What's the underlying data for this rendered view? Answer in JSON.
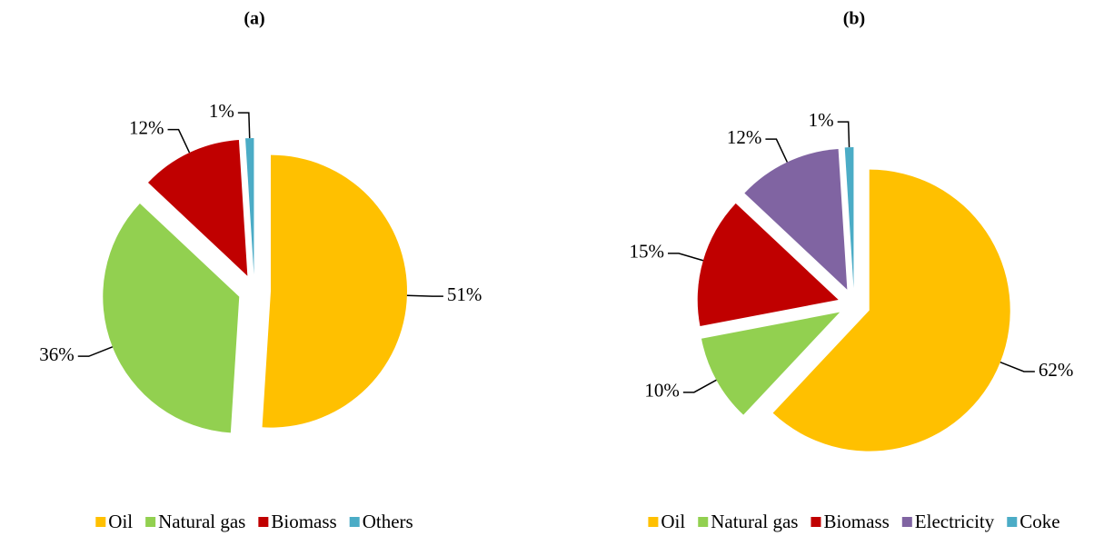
{
  "chart_data": [
    {
      "type": "pie",
      "title": "(a)",
      "categories": [
        "Oil",
        "Natural gas",
        "Biomass",
        "Others"
      ],
      "values": [
        51,
        36,
        12,
        1
      ],
      "value_labels": [
        "51%",
        "36%",
        "12%",
        "1%"
      ],
      "colors": [
        "#FFC000",
        "#92D050",
        "#C00000",
        "#4BACC6"
      ]
    },
    {
      "type": "pie",
      "title": "(b)",
      "categories": [
        "Oil",
        "Natural gas",
        "Biomass",
        "Electricity",
        "Coke"
      ],
      "values": [
        62,
        10,
        15,
        12,
        1
      ],
      "value_labels": [
        "62%",
        "10%",
        "15%",
        "12%",
        "1%"
      ],
      "colors": [
        "#FFC000",
        "#92D050",
        "#C00000",
        "#8064A2",
        "#4BACC6"
      ]
    }
  ]
}
